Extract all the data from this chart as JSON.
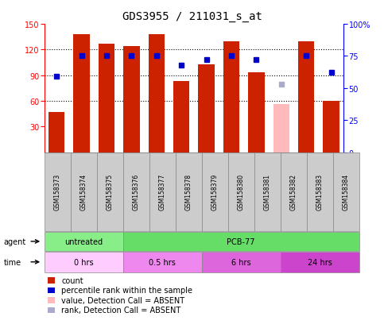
{
  "title": "GDS3955 / 211031_s_at",
  "samples": [
    "GSM158373",
    "GSM158374",
    "GSM158375",
    "GSM158376",
    "GSM158377",
    "GSM158378",
    "GSM158379",
    "GSM158380",
    "GSM158381",
    "GSM158382",
    "GSM158383",
    "GSM158384"
  ],
  "bar_values": [
    47,
    138,
    127,
    124,
    138,
    83,
    103,
    130,
    93,
    null,
    130,
    60
  ],
  "bar_absent_values": [
    null,
    null,
    null,
    null,
    null,
    null,
    null,
    null,
    null,
    56,
    null,
    null
  ],
  "rank_values": [
    59,
    75,
    75,
    75,
    75,
    68,
    72,
    75,
    72,
    null,
    75,
    62
  ],
  "rank_absent_values": [
    null,
    null,
    null,
    null,
    null,
    null,
    null,
    null,
    null,
    53,
    null,
    null
  ],
  "ylim_left": [
    0,
    150
  ],
  "ylim_right": [
    0,
    100
  ],
  "yticks_left": [
    30,
    60,
    90,
    120,
    150
  ],
  "yticks_right": [
    0,
    25,
    50,
    75,
    100
  ],
  "agent_groups": [
    {
      "label": "untreated",
      "start": 0,
      "end": 3,
      "color": "#88ee88"
    },
    {
      "label": "PCB-77",
      "start": 3,
      "end": 12,
      "color": "#66dd66"
    }
  ],
  "time_groups": [
    {
      "label": "0 hrs",
      "start": 0,
      "end": 3,
      "color": "#ffccff"
    },
    {
      "label": "0.5 hrs",
      "start": 3,
      "end": 6,
      "color": "#ee88ee"
    },
    {
      "label": "6 hrs",
      "start": 6,
      "end": 9,
      "color": "#dd66dd"
    },
    {
      "label": "24 hrs",
      "start": 9,
      "end": 12,
      "color": "#cc44cc"
    }
  ],
  "legend_items": [
    {
      "label": "count",
      "color": "#cc2200"
    },
    {
      "label": "percentile rank within the sample",
      "color": "#0000cc"
    },
    {
      "label": "value, Detection Call = ABSENT",
      "color": "#ffbbbb"
    },
    {
      "label": "rank, Detection Call = ABSENT",
      "color": "#aaaacc"
    }
  ],
  "bar_width": 0.65,
  "title_fontsize": 10,
  "tick_fontsize": 7,
  "sample_fontsize": 5.5,
  "row_fontsize": 7,
  "legend_fontsize": 7
}
